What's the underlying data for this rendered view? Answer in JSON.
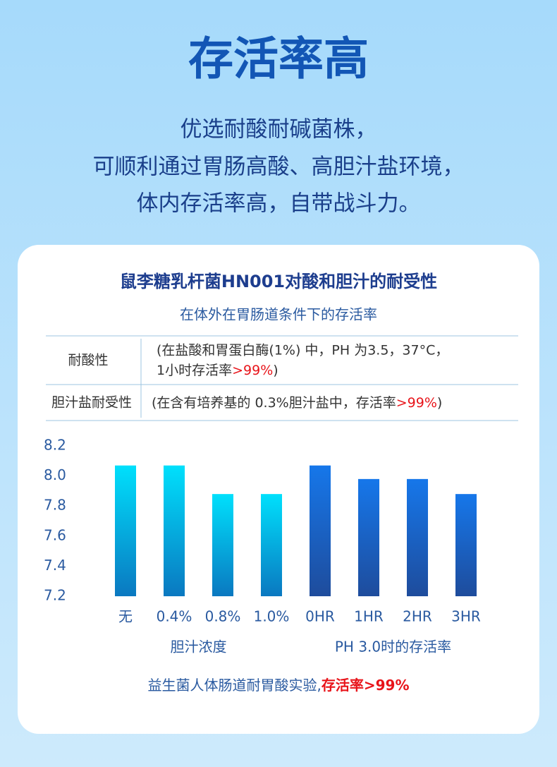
{
  "header": {
    "title": "存活率高",
    "lines": [
      "优选耐酸耐碱菌株，",
      "可顺利通过胃肠高酸、高胆汁盐环境，",
      "体内存活率高，自带战斗力。"
    ]
  },
  "card": {
    "title": "鼠李糖乳杆菌HN001对酸和胆汁的耐受性",
    "subtitle": "在体外在胃肠道条件下的存活率",
    "table": {
      "rows": [
        {
          "label": "耐酸性",
          "text": [
            "(在盐酸和胃蛋白酶(1%) 中，PH 为3.5，37°C，",
            "1小时存活率"
          ],
          "highlight": ">99%",
          "end": ")"
        },
        {
          "label": "胆汁盐耐受性",
          "text": [
            "(在含有培养基的 0.3%胆汁盐中，存活率"
          ],
          "highlight": ">99%",
          "end": ")"
        }
      ]
    },
    "footer": {
      "text": "益生菌人体肠道耐胃酸实验,",
      "highlight": "存活率>99%"
    }
  },
  "chart_data": {
    "type": "bar",
    "groups": [
      {
        "label": "胆汁浓度",
        "categories": [
          "无",
          "0.4%",
          "0.8%",
          "1.0%"
        ],
        "values": [
          8.07,
          8.07,
          7.88,
          7.88
        ],
        "color": [
          "#00e0fc",
          "#0a78c0"
        ]
      },
      {
        "label": "PH 3.0时的存活率",
        "categories": [
          "0HR",
          "1HR",
          "2HR",
          "3HR"
        ],
        "values": [
          8.07,
          7.98,
          7.98,
          7.88
        ],
        "color": [
          "#1677ea",
          "#1e4c9c"
        ]
      }
    ],
    "ylim": [
      7.2,
      8.2
    ],
    "yticks": [
      7.2,
      7.4,
      7.6,
      7.8,
      {
        "value": 8,
        "label": "8.0"
      },
      8.2
    ]
  }
}
